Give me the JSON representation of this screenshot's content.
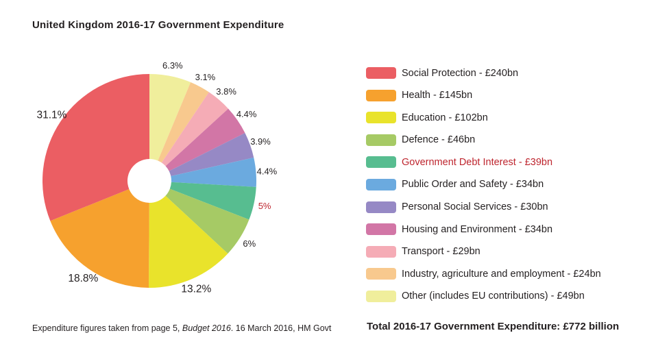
{
  "page": {
    "title": "United Kingdom 2016-17 Government Expenditure",
    "footnote": {
      "prefix": "Expenditure figures taken from page 5, ",
      "italic": "Budget 2016",
      "suffix": ". 16 March 2016, HM Govt"
    },
    "total_label": "Total 2016-17 Government Expenditure: £772 billion"
  },
  "colors": {
    "text_default": "#231F20",
    "highlight_red": "#BE252E",
    "background": "#FFFFFF"
  },
  "chart_data": {
    "type": "pie",
    "title": "United Kingdom 2016-17 Government Expenditure",
    "donut": true,
    "inner_radius_ratio": 0.205,
    "start_angle": "top",
    "clockwise_from_top_order": "reverse of legend order (Other first, Social Protection last)",
    "legend_position": "right",
    "total": "£772 billion",
    "segments": [
      {
        "name": "Social Protection",
        "value_bn": 240,
        "amount_label": "£240bn",
        "percent": 31.1,
        "percent_label": "31.1%",
        "legend_label": "Social Protection - £240bn",
        "color": "#EB5E63"
      },
      {
        "name": "Health",
        "value_bn": 145,
        "amount_label": "£145bn",
        "percent": 18.8,
        "percent_label": "18.8%",
        "legend_label": "Health - £145bn",
        "color": "#F6A12E"
      },
      {
        "name": "Education",
        "value_bn": 102,
        "amount_label": "£102bn",
        "percent": 13.2,
        "percent_label": "13.2%",
        "legend_label": "Education - £102bn",
        "color": "#E9E32B"
      },
      {
        "name": "Defence",
        "value_bn": 46,
        "amount_label": "£46bn",
        "percent": 6,
        "percent_label": "6%",
        "legend_label": "Defence - £46bn",
        "color": "#A6CA65"
      },
      {
        "name": "Government Debt Interest",
        "value_bn": 39,
        "amount_label": "£39bn",
        "percent": 5,
        "percent_label": "5%",
        "legend_label": "Government Debt Interest - £39bn",
        "color": "#57BD90",
        "text_color": "#BE252E"
      },
      {
        "name": "Public Order and Safety",
        "value_bn": 34,
        "amount_label": "£34bn",
        "percent": 4.4,
        "percent_label": "4.4%",
        "legend_label": "Public Order and Safety - £34bn",
        "color": "#6BAADF"
      },
      {
        "name": "Personal Social Services",
        "value_bn": 30,
        "amount_label": "£30bn",
        "percent": 3.9,
        "percent_label": "3.9%",
        "legend_label": "Personal Social Services - £30bn",
        "color": "#9689C5"
      },
      {
        "name": "Housing and Environment",
        "value_bn": 34,
        "amount_label": "£34bn",
        "percent": 4.4,
        "percent_label": "4.4%",
        "legend_label": "Housing and Environment - £34bn",
        "color": "#D276A6"
      },
      {
        "name": "Transport",
        "value_bn": 29,
        "amount_label": "£29bn",
        "percent": 3.8,
        "percent_label": "3.8%",
        "legend_label": "Transport - £29bn",
        "color": "#F5ACB6"
      },
      {
        "name": "Industry, agriculture and employment",
        "value_bn": 24,
        "amount_label": "£24bn",
        "percent": 3.1,
        "percent_label": "3.1%",
        "legend_label": "Industry, agriculture and employment - £24bn",
        "color": "#F8C98E"
      },
      {
        "name": "Other (includes EU contributions)",
        "value_bn": 49,
        "amount_label": "£49bn",
        "percent": 6.3,
        "percent_label": "6.3%",
        "legend_label": "Other (includes EU contributions) - £49bn",
        "color": "#F0EE9C"
      }
    ]
  }
}
